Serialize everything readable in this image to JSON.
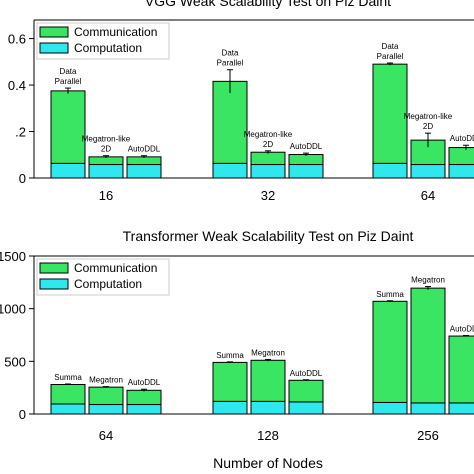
{
  "colors": {
    "communication": "#3ae563",
    "computation": "#2ee8ee",
    "axis": "#000000"
  },
  "xlabel": "Number of Nodes",
  "chart_data": [
    {
      "type": "bar",
      "stacked": true,
      "title": "VGG Weak Scalability Test on Piz Daint",
      "legend": {
        "position": "top-left",
        "entries": [
          "Communication",
          "Computation"
        ]
      },
      "ylim": [
        0,
        0.68
      ],
      "yticks": [
        0,
        0.2,
        0.4,
        0.6
      ],
      "ytick_labels": [
        "0",
        ".2",
        "0.4",
        "0.6"
      ],
      "groups": [
        "16",
        "32",
        "64"
      ],
      "methods": [
        "Data Parallel",
        "Megatron-like 2D",
        "AutoDDL"
      ],
      "method_labels": [
        [
          "Data",
          "Parallel"
        ],
        [
          "Megatron-like",
          "2D"
        ],
        [
          "AutoDDL"
        ]
      ],
      "series": [
        {
          "name": "Computation",
          "values": [
            [
              0.063,
              0.058,
              0.058
            ],
            [
              0.063,
              0.058,
              0.058
            ],
            [
              0.063,
              0.058,
              0.058
            ]
          ]
        },
        {
          "name": "Communication",
          "values": [
            [
              0.312,
              0.033,
              0.033
            ],
            [
              0.353,
              0.053,
              0.043
            ],
            [
              0.427,
              0.105,
              0.073
            ]
          ]
        }
      ],
      "totals": [
        [
          0.375,
          0.091,
          0.091
        ],
        [
          0.416,
          0.111,
          0.101
        ],
        [
          0.49,
          0.163,
          0.131
        ]
      ],
      "errors": [
        [
          0.012,
          0.005,
          0.005
        ],
        [
          0.05,
          0.006,
          0.006
        ],
        [
          0.005,
          0.03,
          0.01
        ]
      ]
    },
    {
      "type": "bar",
      "stacked": true,
      "title": "Transformer Weak Scalability Test on Piz Daint",
      "legend": {
        "position": "top-left",
        "entries": [
          "Communication",
          "Computation"
        ]
      },
      "ylim": [
        0,
        1500
      ],
      "yticks": [
        0,
        500,
        1000,
        1500
      ],
      "ytick_labels": [
        "0",
        "500",
        "1000",
        "1500"
      ],
      "groups": [
        "64",
        "128",
        "256"
      ],
      "methods": [
        "Summa",
        "Megatron",
        "AutoDDL"
      ],
      "method_labels": [
        [
          "Summa"
        ],
        [
          "Megatron"
        ],
        [
          "AutoDDL"
        ]
      ],
      "series": [
        {
          "name": "Computation",
          "values": [
            [
              95,
              90,
              90
            ],
            [
              120,
              120,
              115
            ],
            [
              110,
              105,
              105
            ]
          ]
        },
        {
          "name": "Communication",
          "values": [
            [
              185,
              165,
              135
            ],
            [
              370,
              390,
              205
            ],
            [
              960,
              1090,
              635
            ]
          ]
        }
      ],
      "totals": [
        [
          280,
          255,
          225
        ],
        [
          490,
          510,
          320
        ],
        [
          1070,
          1195,
          740
        ]
      ],
      "errors": [
        [
          5,
          5,
          10
        ],
        [
          5,
          8,
          5
        ],
        [
          5,
          15,
          5
        ]
      ]
    }
  ]
}
